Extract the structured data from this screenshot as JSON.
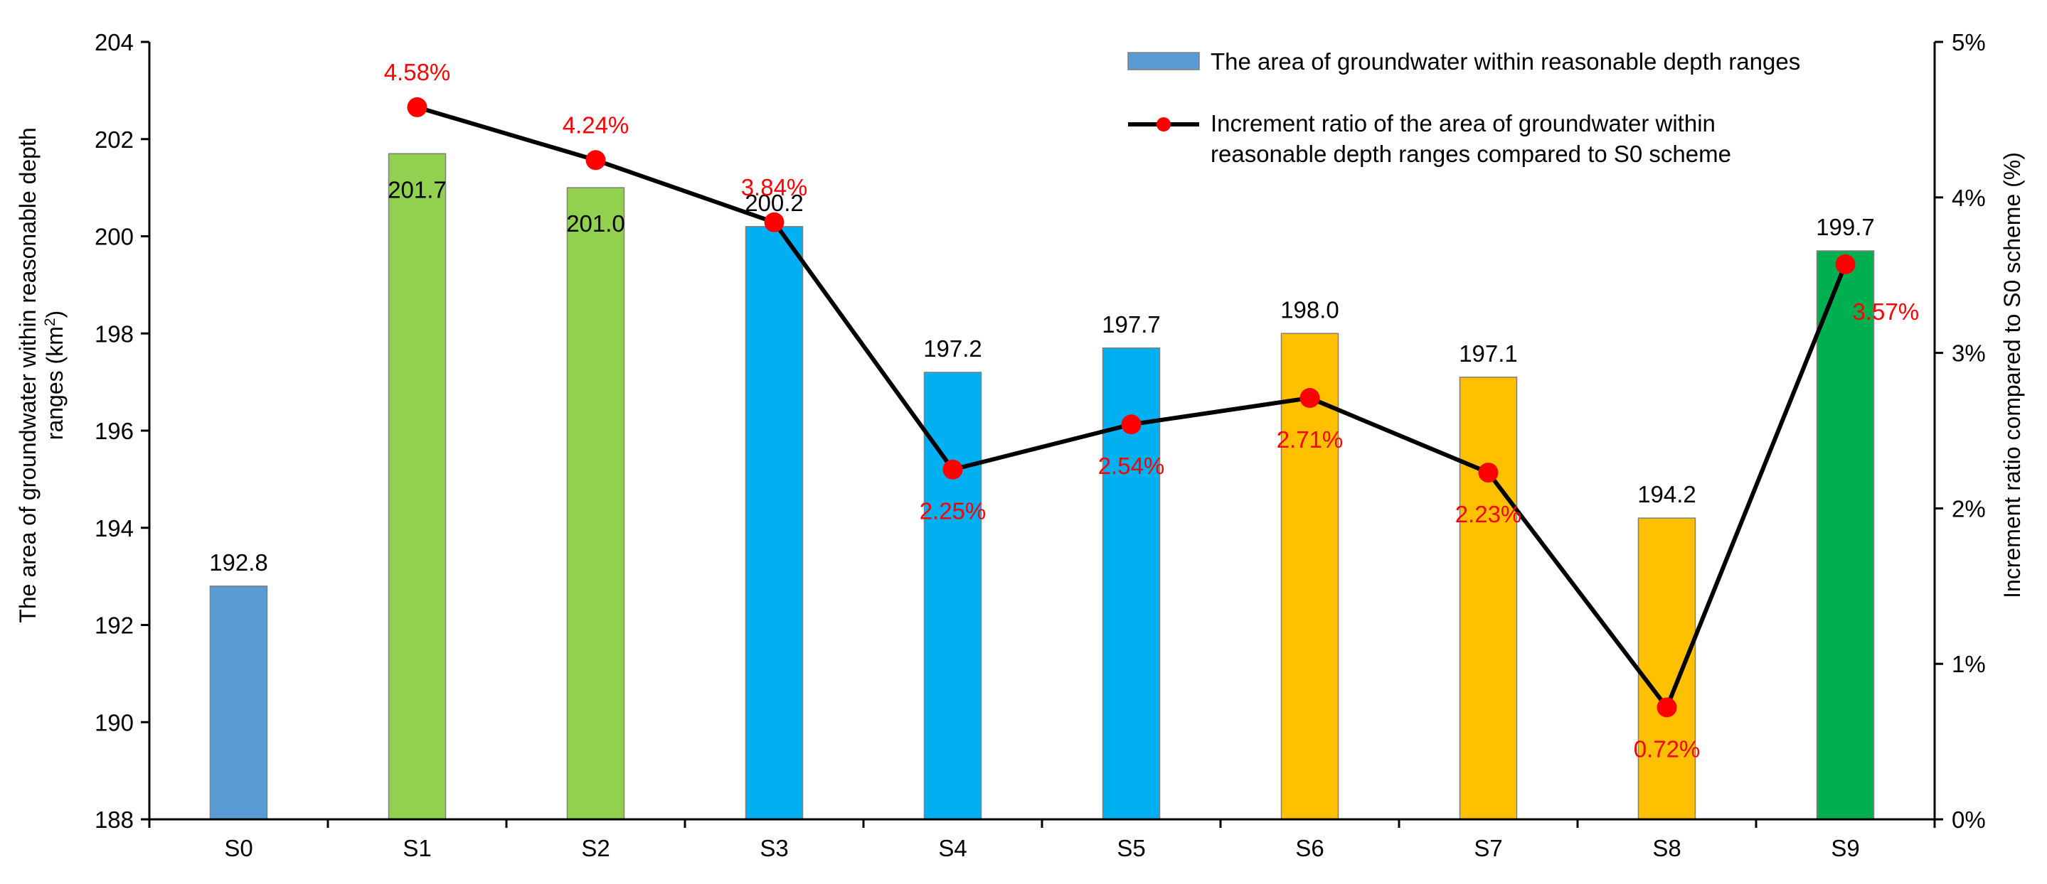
{
  "chart_data": {
    "type": "bar",
    "categories": [
      "S0",
      "S1",
      "S2",
      "S3",
      "S4",
      "S5",
      "S6",
      "S7",
      "S8",
      "S9"
    ],
    "values": [
      192.8,
      201.7,
      201.0,
      200.2,
      197.2,
      197.7,
      198.0,
      197.1,
      194.2,
      199.7
    ],
    "value_labels": [
      "192.8",
      "201.7",
      "201.0",
      "200.2",
      "197.2",
      "197.7",
      "198.0",
      "197.1",
      "194.2",
      "199.7"
    ],
    "bar_colors": [
      "#5B9BD5",
      "#92D050",
      "#92D050",
      "#00B0F0",
      "#00B0F0",
      "#00B0F0",
      "#FFC000",
      "#FFC000",
      "#FFC000",
      "#00B050"
    ],
    "line_series": {
      "name": "Increment ratio of the area of groundwater within reasonable depth ranges compared to S0 scheme",
      "categories": [
        "S1",
        "S2",
        "S3",
        "S4",
        "S5",
        "S6",
        "S7",
        "S8",
        "S9"
      ],
      "values": [
        4.58,
        4.24,
        3.84,
        2.25,
        2.54,
        2.71,
        2.23,
        0.72,
        3.57
      ],
      "labels": [
        "4.58%",
        "4.24%",
        "3.84%",
        "2.25%",
        "2.54%",
        "2.71%",
        "2.23%",
        "0.72%",
        "3.57%"
      ],
      "line_color": "#000000",
      "marker_color": "#FF0000",
      "label_color": "#FF0000"
    },
    "legend": {
      "position": "top-right",
      "bar_entry": "The area of groundwater within reasonable depth ranges",
      "line_entry_line1": "Increment ratio of the area of groundwater within",
      "line_entry_line2": "reasonable depth ranges compared to S0 scheme",
      "bar_swatch_color": "#5B9BD5"
    },
    "y_left": {
      "label_line1": "The area of groundwater within reasonable depth",
      "label_line2_prefix": "ranges (km",
      "label_line2_sup": "2",
      "label_line2_suffix": ")",
      "ylim": [
        188,
        204
      ],
      "ticks": [
        188,
        190,
        192,
        194,
        196,
        198,
        200,
        202,
        204
      ],
      "tick_labels": [
        "188",
        "190",
        "192",
        "194",
        "196",
        "198",
        "200",
        "202",
        "204"
      ]
    },
    "y_right": {
      "label": "Increment ratio compared to S0 scheme (%)",
      "ylim": [
        0,
        5
      ],
      "ticks": [
        0,
        1,
        2,
        3,
        4,
        5
      ],
      "tick_labels": [
        "0%",
        "1%",
        "2%",
        "3%",
        "4%",
        "5%"
      ]
    },
    "grid": false
  }
}
